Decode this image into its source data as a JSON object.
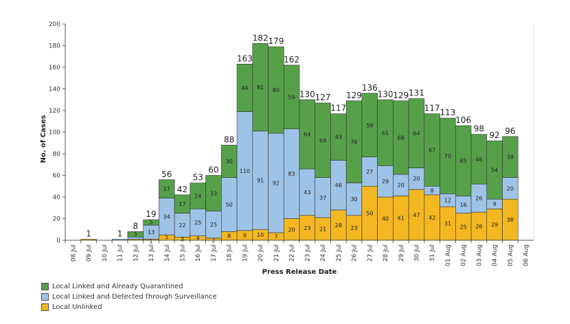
{
  "chart_data": {
    "type": "bar",
    "stacked": true,
    "xlabel": "Press Release Date",
    "ylabel": "No. of Cases",
    "ylim": [
      0,
      200
    ],
    "yticks": [
      0,
      20,
      40,
      60,
      80,
      100,
      120,
      140,
      160,
      180,
      200
    ],
    "grid": false,
    "legend_position": "bottom-left",
    "categories": [
      "08 Jul",
      "09 Jul",
      "10 Jul",
      "11 Jul",
      "12 Jul",
      "13 Jul",
      "14 Jul",
      "15 Jul",
      "16 Jul",
      "17 Jul",
      "18 Jul",
      "19 Jul",
      "20 Jul",
      "21 Jul",
      "22 Jul",
      "23 Jul",
      "24 Jul",
      "25 Jul",
      "26 Jul",
      "27 Jul",
      "28 Jul",
      "29 Jul",
      "30 Jul",
      "31 Jul",
      "01 Aug",
      "02 Aug",
      "03 Aug",
      "04 Aug",
      "05 Aug",
      "06 Aug"
    ],
    "series": [
      {
        "name": "Local Unlinked",
        "color": "#f3b721",
        "values": [
          0,
          1,
          0,
          0,
          1,
          1,
          5,
          3,
          4,
          2,
          8,
          9,
          10,
          7,
          20,
          23,
          21,
          28,
          23,
          50,
          40,
          41,
          47,
          42,
          31,
          25,
          26,
          29,
          38,
          0
        ],
        "labels": [
          "",
          "",
          "",
          "",
          "",
          "1",
          "5",
          "3",
          "4",
          "2",
          "8",
          "9",
          "10",
          "7",
          "20",
          "23",
          "21",
          "28",
          "23",
          "50",
          "40",
          "41",
          "47",
          "42",
          "31",
          "25",
          "26",
          "29",
          "38",
          ""
        ]
      },
      {
        "name": "Local Linked and Detected through Surveillance",
        "color": "#9dc3e6",
        "values": [
          0,
          0,
          0,
          1,
          2,
          13,
          34,
          22,
          25,
          25,
          50,
          110,
          91,
          92,
          83,
          43,
          37,
          46,
          30,
          27,
          29,
          20,
          20,
          8,
          12,
          16,
          26,
          9,
          20,
          0
        ],
        "labels": [
          "",
          "",
          "",
          "",
          "",
          "13",
          "34",
          "22",
          "25",
          "25",
          "50",
          "110",
          "91",
          "92",
          "83",
          "43",
          "37",
          "46",
          "30",
          "27",
          "29",
          "20",
          "20",
          "8",
          "12",
          "16",
          "26",
          "9",
          "20",
          ""
        ]
      },
      {
        "name": "Local Linked and Already Quarantined",
        "color": "#56a04a",
        "values": [
          0,
          0,
          0,
          0,
          5,
          5,
          17,
          17,
          24,
          33,
          30,
          44,
          81,
          80,
          59,
          64,
          69,
          43,
          76,
          59,
          61,
          68,
          64,
          67,
          70,
          65,
          46,
          54,
          38,
          0
        ],
        "labels": [
          "",
          "",
          "",
          "",
          "5",
          "5",
          "17",
          "17",
          "24",
          "33",
          "30",
          "44",
          "81",
          "80",
          "59",
          "64",
          "69",
          "43",
          "76",
          "59",
          "61",
          "68",
          "64",
          "67",
          "70",
          "65",
          "46",
          "54",
          "38",
          ""
        ]
      }
    ],
    "totals": [
      "",
      "1",
      "",
      "1",
      "8",
      "19",
      "56",
      "42",
      "53",
      "60",
      "88",
      "163",
      "182",
      "179",
      "162",
      "130",
      "127",
      "117",
      "129",
      "136",
      "130",
      "129",
      "131",
      "117",
      "113",
      "106",
      "98",
      "92",
      "96",
      ""
    ]
  }
}
